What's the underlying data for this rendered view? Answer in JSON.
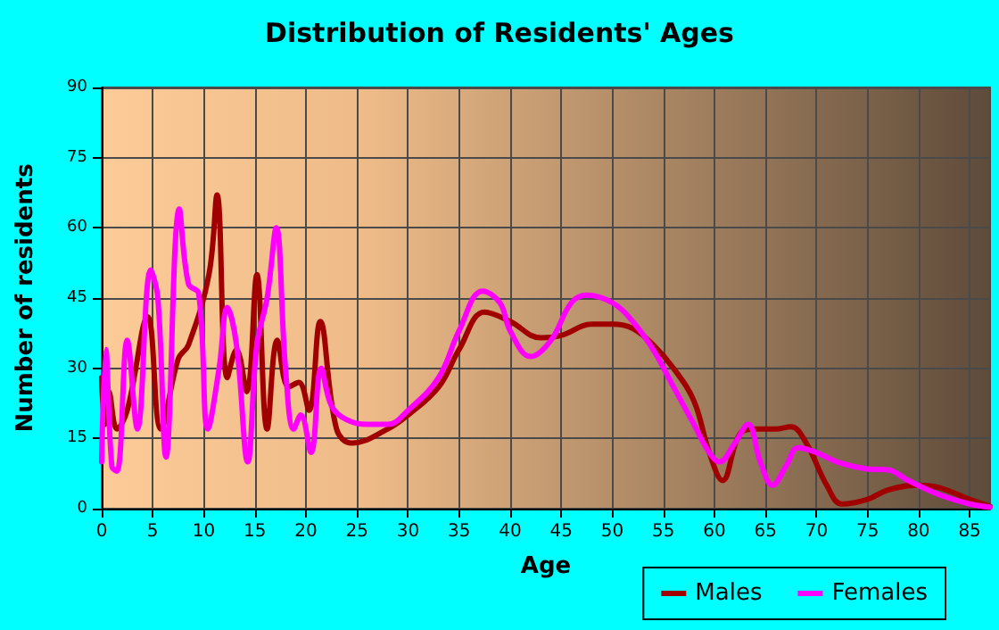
{
  "chart_data": {
    "type": "line",
    "title": "Distribution of Residents' Ages",
    "xlabel": "Age",
    "ylabel": "Number of residents",
    "xlim": [
      0,
      87
    ],
    "xticks": [
      0,
      5,
      10,
      15,
      20,
      25,
      30,
      35,
      40,
      45,
      50,
      55,
      60,
      65,
      70,
      75,
      80,
      85
    ],
    "ylim": [
      0,
      90
    ],
    "yticks": [
      0,
      15,
      30,
      45,
      60,
      75,
      90
    ],
    "grid": true,
    "legend": "bottom right",
    "marker": "none",
    "line_style": "solid",
    "series": [
      {
        "name": "Males",
        "color": "#a00000",
        "x": [
          0,
          0.3,
          0.7,
          1.5,
          2.5,
          4.5,
          5.8,
          7.5,
          8.5,
          10.5,
          11.3,
          12.3,
          13.2,
          14.2,
          15.2,
          16.2,
          17.2,
          18.3,
          19.3,
          20.3,
          21.4,
          23,
          24.5,
          28,
          30,
          33,
          35,
          37.5,
          40,
          43,
          45,
          48,
          50,
          52,
          54,
          56,
          58,
          59.5,
          60.8,
          62.5,
          64,
          66,
          67.5,
          69,
          71,
          72.5,
          75,
          77,
          80,
          82,
          85,
          87
        ],
        "values": [
          28,
          18,
          25,
          17,
          21,
          41,
          17,
          32,
          35,
          50,
          67,
          28,
          34,
          25,
          50,
          17,
          36,
          26,
          27,
          21,
          40,
          17,
          14,
          17,
          20,
          26,
          34,
          42,
          40,
          36.5,
          37,
          39.4,
          39.4,
          38.5,
          35,
          30,
          23,
          12,
          6,
          16,
          17,
          17,
          17.5,
          14,
          5,
          1,
          2,
          4,
          5,
          4.5,
          2,
          0.5
        ]
      },
      {
        "name": "Females",
        "color": "#ff00ff",
        "x": [
          0,
          0.4,
          1,
          1.5,
          2.5,
          3.5,
          4.8,
          5.5,
          6.3,
          7.6,
          8.5,
          9.5,
          10.4,
          11.5,
          12.3,
          13.2,
          14.3,
          15.2,
          16.2,
          17.1,
          18,
          18.8,
          19.5,
          20.5,
          21.5,
          22.5,
          24,
          26,
          28,
          30,
          33,
          35,
          37.3,
          39,
          40,
          42,
          44,
          46,
          47.5,
          50,
          52,
          54,
          56,
          58,
          59.5,
          60.5,
          62,
          63.3,
          64.5,
          65.7,
          67,
          68.2,
          70,
          72,
          75,
          77,
          79,
          82,
          85,
          87
        ],
        "values": [
          10,
          34,
          9,
          8,
          36,
          17,
          51,
          45,
          11,
          64,
          48,
          46,
          17,
          30,
          43,
          35,
          10,
          35,
          45,
          60,
          30,
          17,
          20,
          12,
          30,
          22,
          19,
          18,
          18,
          21,
          28,
          38,
          46.5,
          44,
          38,
          32.5,
          36,
          44,
          45.6,
          44,
          40,
          34,
          26,
          18,
          12,
          10,
          14,
          18,
          10,
          5,
          9,
          13,
          12,
          10,
          8.5,
          8.3,
          6,
          3,
          1,
          0.3
        ]
      }
    ]
  }
}
